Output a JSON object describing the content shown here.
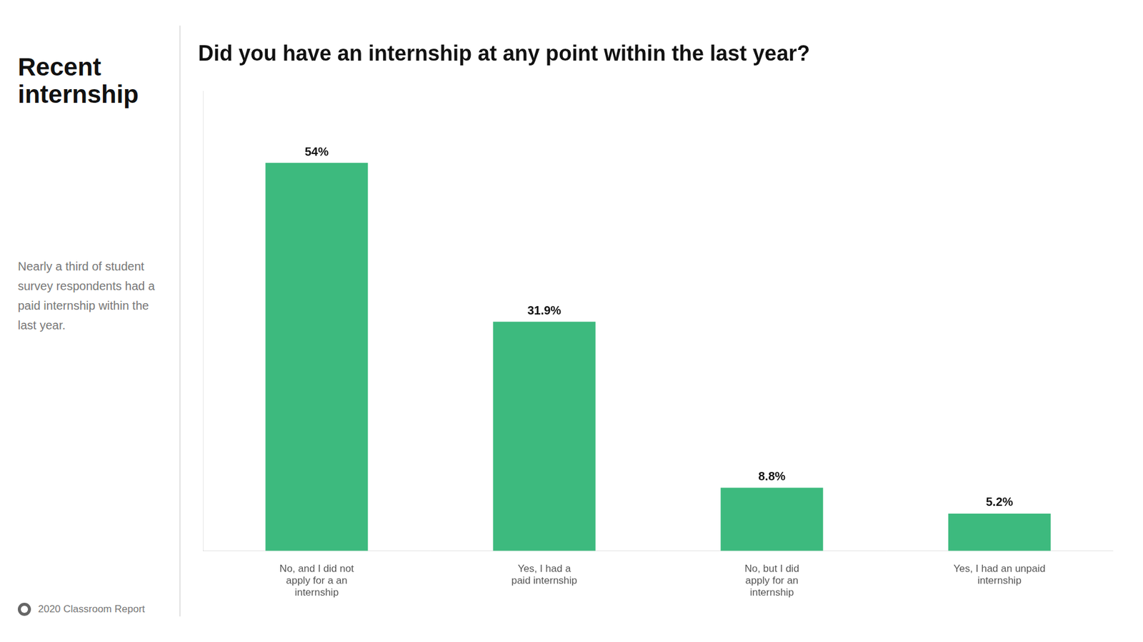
{
  "chart_data": {
    "type": "bar",
    "title": "Did you have an internship at any point within the last year?",
    "annotations": [
      "Recent\ninternship",
      "Nearly a third of student\nsurvey respondents had a\npaid internship within the\nlast year.",
      "2020 Classroom Report"
    ],
    "categories": [
      "No, and I did not\napply for a an\ninternship",
      "Yes, I had a\npaid internship",
      "No, but I did\napply for an\ninternship",
      "Yes, I had an unpaid\ninternship"
    ],
    "values": [
      54.0,
      31.9,
      8.8,
      5.2
    ],
    "value_labels": [
      "54%",
      "31.9%",
      "8.8%",
      "5.2%"
    ],
    "color": "#3dba7e",
    "ylim": [
      0,
      64
    ],
    "grid": false,
    "data_labels": true,
    "tick_labels": "x"
  }
}
